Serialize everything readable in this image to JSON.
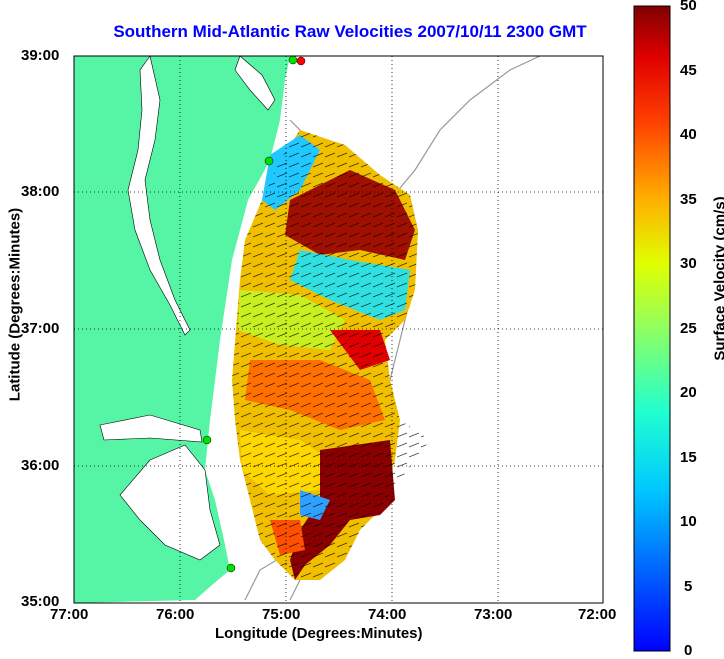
{
  "title": "Southern Mid-Atlantic Raw Velocities 2007/10/11 2300 GMT",
  "x_axis": {
    "label": "Longitude (Degrees:Minutes)",
    "ticks": [
      "77:00",
      "76:00",
      "75:00",
      "74:00",
      "73:00",
      "72:00"
    ]
  },
  "y_axis": {
    "label": "Latitude (Degrees:Minutes)",
    "ticks": [
      "39:00",
      "38:00",
      "37:00",
      "36:00",
      "35:00"
    ]
  },
  "colorbar": {
    "label": "Surface Velocity (cm/s)",
    "ticks": [
      "50",
      "45",
      "40",
      "35",
      "30",
      "25",
      "20",
      "15",
      "10",
      "5",
      "0"
    ],
    "min": 0,
    "max": 50
  },
  "colors": {
    "land": "#55f5a5",
    "title": "#0000ff",
    "ocean": "#ffffff"
  }
}
